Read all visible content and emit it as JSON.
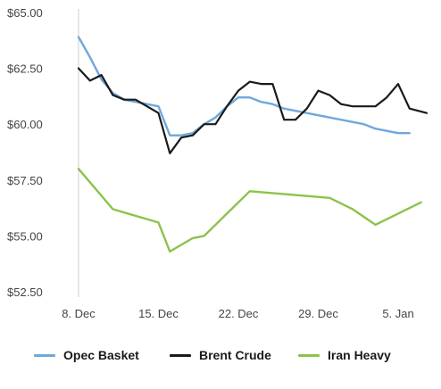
{
  "chart_data": {
    "type": "line",
    "x_tick_labels": [
      "8. Dec",
      "15. Dec",
      "22. Dec",
      "29. Dec",
      "5. Jan"
    ],
    "x_tick_days": [
      0,
      7,
      14,
      21,
      28
    ],
    "xlim_days": [
      0,
      30.5
    ],
    "y_tick_labels": [
      "$65.00",
      "$62.50",
      "$60.00",
      "$57.50",
      "$55.00",
      "$52.50"
    ],
    "y_ticks": [
      65,
      62.5,
      60,
      57.5,
      55,
      52.5
    ],
    "ylim": [
      52.5,
      65
    ],
    "grid": {
      "x": false,
      "y": false,
      "axis_line": "left"
    },
    "legend_position": "bottom",
    "series": [
      {
        "name": "Opec Basket",
        "color": "#6fa8dc",
        "points": [
          [
            0,
            63.9
          ],
          [
            1,
            63.0
          ],
          [
            2,
            62.0
          ],
          [
            3,
            61.4
          ],
          [
            4,
            61.1
          ],
          [
            5,
            61.0
          ],
          [
            6,
            60.9
          ],
          [
            7,
            60.8
          ],
          [
            8,
            59.5
          ],
          [
            9,
            59.5
          ],
          [
            10,
            59.6
          ],
          [
            11,
            60.0
          ],
          [
            12,
            60.3
          ],
          [
            13,
            60.8
          ],
          [
            14,
            61.2
          ],
          [
            15,
            61.2
          ],
          [
            16,
            61.0
          ],
          [
            17,
            60.9
          ],
          [
            18,
            60.7
          ],
          [
            19,
            60.6
          ],
          [
            20,
            60.5
          ],
          [
            21,
            60.4
          ],
          [
            22,
            60.3
          ],
          [
            23,
            60.2
          ],
          [
            24,
            60.1
          ],
          [
            25,
            60.0
          ],
          [
            26,
            59.8
          ],
          [
            27,
            59.7
          ],
          [
            28,
            59.6
          ],
          [
            29,
            59.6
          ]
        ]
      },
      {
        "name": "Brent Crude",
        "color": "#1a1a1a",
        "points": [
          [
            0,
            62.5
          ],
          [
            1,
            61.95
          ],
          [
            2,
            62.2
          ],
          [
            3,
            61.3
          ],
          [
            4,
            61.1
          ],
          [
            5,
            61.1
          ],
          [
            6,
            60.8
          ],
          [
            7,
            60.5
          ],
          [
            8,
            58.7
          ],
          [
            9,
            59.4
          ],
          [
            10,
            59.5
          ],
          [
            11,
            60.0
          ],
          [
            12,
            60.0
          ],
          [
            13,
            60.8
          ],
          [
            14,
            61.5
          ],
          [
            15,
            61.9
          ],
          [
            16,
            61.8
          ],
          [
            17,
            61.8
          ],
          [
            18,
            60.2
          ],
          [
            19,
            60.2
          ],
          [
            20,
            60.7
          ],
          [
            21,
            61.5
          ],
          [
            22,
            61.3
          ],
          [
            23,
            60.9
          ],
          [
            24,
            60.8
          ],
          [
            25,
            60.8
          ],
          [
            26,
            60.8
          ],
          [
            27,
            61.2
          ],
          [
            28,
            61.8
          ],
          [
            29,
            60.7
          ],
          [
            30.5,
            60.5
          ]
        ]
      },
      {
        "name": "Iran Heavy",
        "color": "#8bc34a",
        "points": [
          [
            0,
            58.0
          ],
          [
            3,
            56.2
          ],
          [
            7,
            55.6
          ],
          [
            8,
            54.3
          ],
          [
            10,
            54.9
          ],
          [
            11,
            55.0
          ],
          [
            15,
            57.0
          ],
          [
            22,
            56.7
          ],
          [
            24,
            56.2
          ],
          [
            26,
            55.5
          ],
          [
            30,
            56.5
          ]
        ]
      }
    ]
  }
}
